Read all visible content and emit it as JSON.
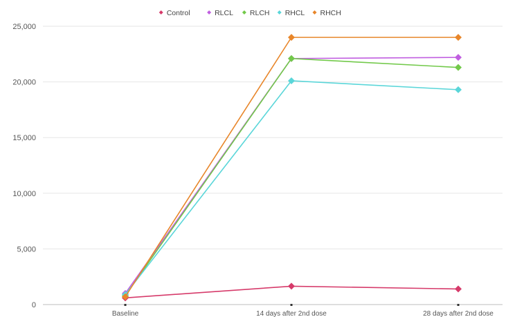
{
  "chart_data": {
    "type": "line",
    "categories": [
      "Baseline",
      "14 days after 2nd dose",
      "28 days after 2nd dose"
    ],
    "series": [
      {
        "name": "Control",
        "color": "#d63a6a",
        "values": [
          600,
          1650,
          1400
        ]
      },
      {
        "name": "RLCL",
        "color": "#c05ee0",
        "values": [
          1000,
          22100,
          22200
        ]
      },
      {
        "name": "RLCH",
        "color": "#72c94a",
        "values": [
          800,
          22100,
          21300
        ]
      },
      {
        "name": "RHCL",
        "color": "#5ad6d9",
        "values": [
          900,
          20100,
          19300
        ]
      },
      {
        "name": "RHCH",
        "color": "#e8862a",
        "values": [
          700,
          24000,
          24000
        ]
      }
    ],
    "y_ticks": [
      "0",
      "5,000",
      "10,000",
      "15,000",
      "20,000",
      "25,000"
    ],
    "ylim": [
      0,
      25000
    ],
    "legend_position": "top-center",
    "grid": true
  }
}
